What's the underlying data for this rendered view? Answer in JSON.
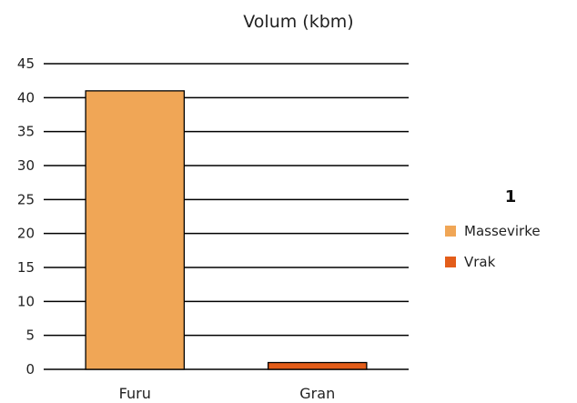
{
  "chart_data": {
    "type": "bar",
    "title": "Volum (kbm)",
    "categories": [
      "Furu",
      "Gran"
    ],
    "series": [
      {
        "name": "Massevirke",
        "color": "#f0a656",
        "values": [
          41,
          null
        ]
      },
      {
        "name": "Vrak",
        "color": "#e35d1a",
        "values": [
          null,
          1
        ]
      }
    ],
    "ylim": [
      0,
      45
    ],
    "yticks": [
      0,
      5,
      10,
      15,
      20,
      25,
      30,
      35,
      40,
      45
    ],
    "grid": true,
    "legend": {
      "title": "1",
      "placement": "right"
    }
  }
}
